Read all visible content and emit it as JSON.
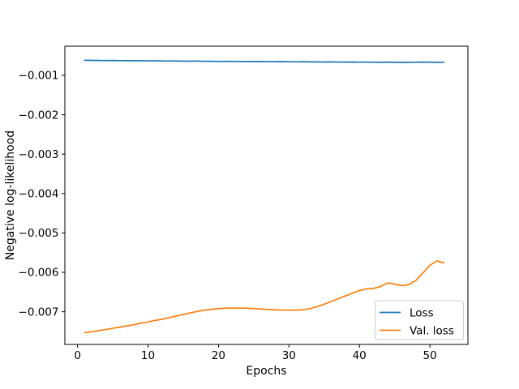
{
  "figure": {
    "background": "#ffffff",
    "frame_color": "#000000",
    "legend_border_color": "#cccccc",
    "legend_background": "#ffffff"
  },
  "chart_data": {
    "type": "line",
    "title": "",
    "xlabel": "Epochs",
    "ylabel": "Negative log-likelihood",
    "xlim": [
      -1.8,
      55.4
    ],
    "ylim": [
      -0.00783,
      -0.00026
    ],
    "grid": false,
    "legend_position": "lower right",
    "x_ticks": [
      0,
      10,
      20,
      30,
      40,
      50
    ],
    "x_tick_labels": [
      "0",
      "10",
      "20",
      "30",
      "40",
      "50"
    ],
    "y_ticks": [
      -0.001,
      -0.002,
      -0.003,
      -0.004,
      -0.005,
      -0.006,
      -0.007
    ],
    "y_tick_labels": [
      "−0.001",
      "−0.002",
      "−0.003",
      "−0.004",
      "−0.005",
      "−0.006",
      "−0.007"
    ],
    "x": [
      1,
      2,
      3,
      4,
      5,
      6,
      7,
      8,
      9,
      10,
      11,
      12,
      13,
      14,
      15,
      16,
      17,
      18,
      19,
      20,
      21,
      22,
      23,
      24,
      25,
      26,
      27,
      28,
      29,
      30,
      31,
      32,
      33,
      34,
      35,
      36,
      37,
      38,
      39,
      40,
      41,
      42,
      43,
      44,
      45,
      46,
      47,
      48,
      49,
      50,
      51,
      52
    ],
    "series": [
      {
        "name": "Loss",
        "color": "#1f77b4",
        "values": [
          -0.000618,
          -0.00062,
          -0.000622,
          -0.000625,
          -0.000623,
          -0.000626,
          -0.000628,
          -0.000626,
          -0.00063,
          -0.000632,
          -0.000629,
          -0.000634,
          -0.000637,
          -0.000634,
          -0.000639,
          -0.000641,
          -0.000637,
          -0.000644,
          -0.000642,
          -0.000647,
          -0.000644,
          -0.000646,
          -0.000649,
          -0.000647,
          -0.000651,
          -0.000649,
          -0.000652,
          -0.000654,
          -0.000651,
          -0.000655,
          -0.000657,
          -0.000654,
          -0.000659,
          -0.000657,
          -0.000661,
          -0.000659,
          -0.000662,
          -0.000664,
          -0.000661,
          -0.000665,
          -0.000663,
          -0.000667,
          -0.000669,
          -0.000664,
          -0.000671,
          -0.000674,
          -0.000669,
          -0.000667,
          -0.000664,
          -0.000667,
          -0.000669,
          -0.000667
        ]
      },
      {
        "name": "Val. loss",
        "color": "#ff7f0e",
        "values": [
          -0.00753,
          -0.00751,
          -0.00748,
          -0.00745,
          -0.00742,
          -0.00739,
          -0.00736,
          -0.00733,
          -0.00729,
          -0.00726,
          -0.00722,
          -0.00719,
          -0.00715,
          -0.00711,
          -0.00707,
          -0.00703,
          -0.00699,
          -0.00696,
          -0.00694,
          -0.00692,
          -0.00691,
          -0.00691,
          -0.00691,
          -0.00691,
          -0.00692,
          -0.00693,
          -0.00694,
          -0.00695,
          -0.00696,
          -0.00696,
          -0.00696,
          -0.00695,
          -0.00692,
          -0.00687,
          -0.00681,
          -0.00674,
          -0.00667,
          -0.0066,
          -0.00653,
          -0.00646,
          -0.00642,
          -0.00641,
          -0.00636,
          -0.00627,
          -0.0063,
          -0.00634,
          -0.00631,
          -0.00621,
          -0.00602,
          -0.00582,
          -0.00571,
          -0.00576
        ]
      }
    ]
  }
}
